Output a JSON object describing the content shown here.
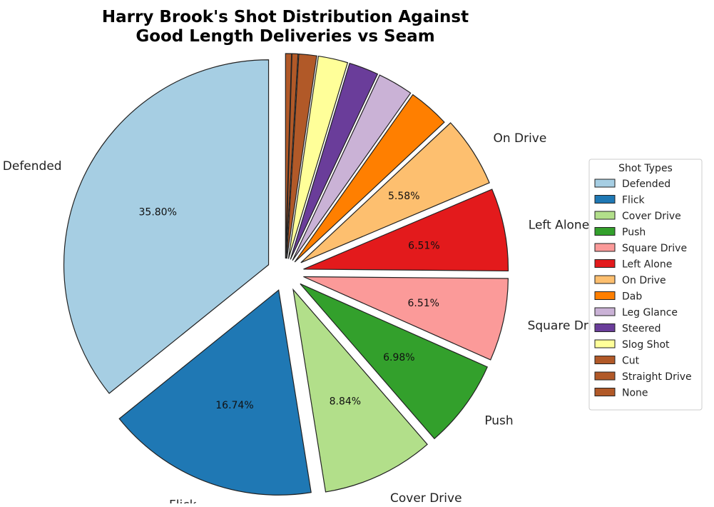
{
  "chart_data": {
    "type": "pie",
    "title": "Harry Brook's Shot Distribution Against\nGood Length Deliveries vs Seam",
    "legend_title": "Shot Types",
    "legend_placement": "right",
    "slices": [
      {
        "label": "Defended",
        "value": 35.8,
        "pct_text": "35.80%",
        "color": "#a6cee3",
        "show_label": true
      },
      {
        "label": "Flick",
        "value": 16.74,
        "pct_text": "16.74%",
        "color": "#1f78b4",
        "show_label": true
      },
      {
        "label": "Cover Drive",
        "value": 8.84,
        "pct_text": "8.84%",
        "color": "#b2df8a",
        "show_label": true
      },
      {
        "label": "Push",
        "value": 6.98,
        "pct_text": "6.98%",
        "color": "#33a02c",
        "show_label": true
      },
      {
        "label": "Square Drive",
        "value": 6.51,
        "pct_text": "6.51%",
        "color": "#fb9a99",
        "show_label": true
      },
      {
        "label": "Left Alone",
        "value": 6.51,
        "pct_text": "6.51%",
        "color": "#e31a1c",
        "show_label": true
      },
      {
        "label": "On Drive",
        "value": 5.58,
        "pct_text": "5.58%",
        "color": "#fdbf6f",
        "show_label": true
      },
      {
        "label": "Dab",
        "value": 3.26,
        "pct_text": "",
        "color": "#ff7f00",
        "show_label": false
      },
      {
        "label": "Leg Glance",
        "value": 2.79,
        "pct_text": "",
        "color": "#cab2d6",
        "show_label": false
      },
      {
        "label": "Steered",
        "value": 2.33,
        "pct_text": "",
        "color": "#6a3d9a",
        "show_label": false
      },
      {
        "label": "Slog Shot",
        "value": 2.33,
        "pct_text": "",
        "color": "#ffff99",
        "show_label": false
      },
      {
        "label": "Cut",
        "value": 1.4,
        "pct_text": "",
        "color": "#b15928",
        "show_label": false
      },
      {
        "label": "Straight Drive",
        "value": 0.47,
        "pct_text": "",
        "color": "#b15928",
        "show_label": false
      },
      {
        "label": "None",
        "value": 0.47,
        "pct_text": "",
        "color": "#b15928",
        "show_label": false
      }
    ],
    "start_angle_deg": 90,
    "direction": "counterclockwise"
  }
}
